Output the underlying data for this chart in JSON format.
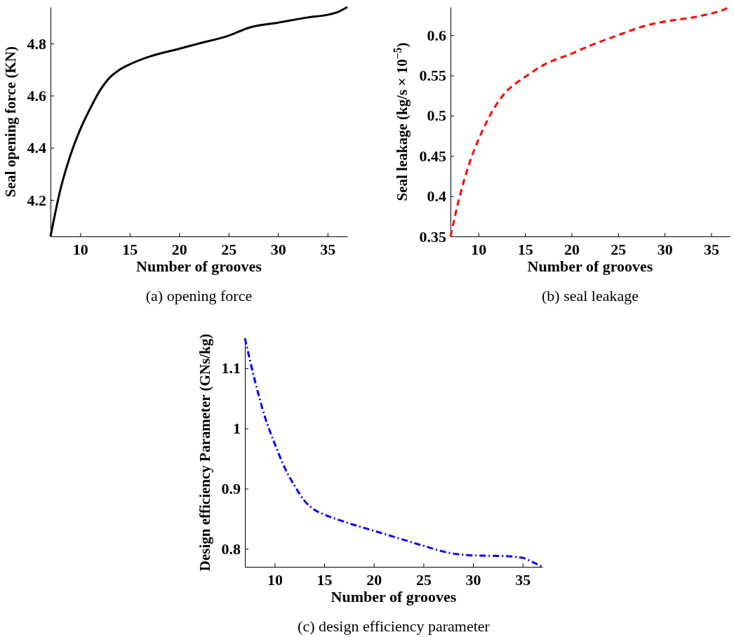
{
  "chart_data": [
    {
      "type": "line",
      "xlabel": "Number of grooves",
      "ylabel": "Seal opening force (KN)",
      "annotations": [
        "(a)  opening force"
      ],
      "x": [
        7,
        8,
        9,
        10,
        11,
        12,
        13,
        14,
        15,
        17,
        20,
        22,
        25,
        27,
        30,
        33,
        35,
        36,
        37
      ],
      "series": [
        {
          "color": "#000000",
          "line_style": "solid",
          "values": [
            4.06,
            4.24,
            4.37,
            4.47,
            4.55,
            4.62,
            4.67,
            4.7,
            4.72,
            4.75,
            4.78,
            4.8,
            4.83,
            4.86,
            4.88,
            4.9,
            4.91,
            4.92,
            4.94
          ]
        }
      ],
      "xlim": [
        7,
        37
      ],
      "ylim": [
        4.06,
        4.94
      ],
      "xticks": [
        10,
        15,
        20,
        25,
        30,
        35
      ],
      "yticks": [
        4.2,
        4.4,
        4.6,
        4.8
      ],
      "grid": false
    },
    {
      "type": "line",
      "xlabel": "Number of grooves",
      "ylabel": "Seal leakage (kg/s × 10$^{−5}$)",
      "annotations": [
        "(b)  seal leakage"
      ],
      "x": [
        7,
        8,
        9,
        10,
        11,
        12,
        13,
        14,
        15,
        17,
        20,
        22,
        25,
        28,
        30,
        33,
        35,
        36,
        37
      ],
      "series": [
        {
          "color": "#ff0000",
          "line_style": "dashed",
          "values": [
            0.35,
            0.4,
            0.44,
            0.47,
            0.495,
            0.515,
            0.53,
            0.54,
            0.548,
            0.563,
            0.577,
            0.587,
            0.6,
            0.612,
            0.617,
            0.622,
            0.627,
            0.63,
            0.635
          ]
        }
      ],
      "xlim": [
        7,
        37
      ],
      "ylim": [
        0.35,
        0.635
      ],
      "xticks": [
        10,
        15,
        20,
        25,
        30,
        35
      ],
      "yticks": [
        0.35,
        0.4,
        0.45,
        0.5,
        0.55,
        0.6
      ],
      "grid": false
    },
    {
      "type": "line",
      "xlabel": "Number of grooves",
      "ylabel": "Design efficiency Parameter (GNs/kg)",
      "annotations": [
        "(c)  design efficiency parameter"
      ],
      "x": [
        7,
        8,
        9,
        10,
        11,
        12,
        13,
        14,
        15,
        17,
        20,
        23,
        25,
        28,
        30,
        33,
        35,
        36,
        37
      ],
      "series": [
        {
          "color": "#0000ff",
          "line_style": "dashdot",
          "values": [
            1.15,
            1.08,
            1.02,
            0.975,
            0.935,
            0.905,
            0.88,
            0.865,
            0.857,
            0.845,
            0.83,
            0.815,
            0.805,
            0.792,
            0.789,
            0.788,
            0.785,
            0.778,
            0.77
          ]
        }
      ],
      "xlim": [
        7,
        37
      ],
      "ylim": [
        0.77,
        1.15
      ],
      "xticks": [
        10,
        15,
        20,
        25,
        30,
        35
      ],
      "yticks": [
        0.8,
        0.9,
        1,
        1.1
      ],
      "grid": false
    }
  ]
}
